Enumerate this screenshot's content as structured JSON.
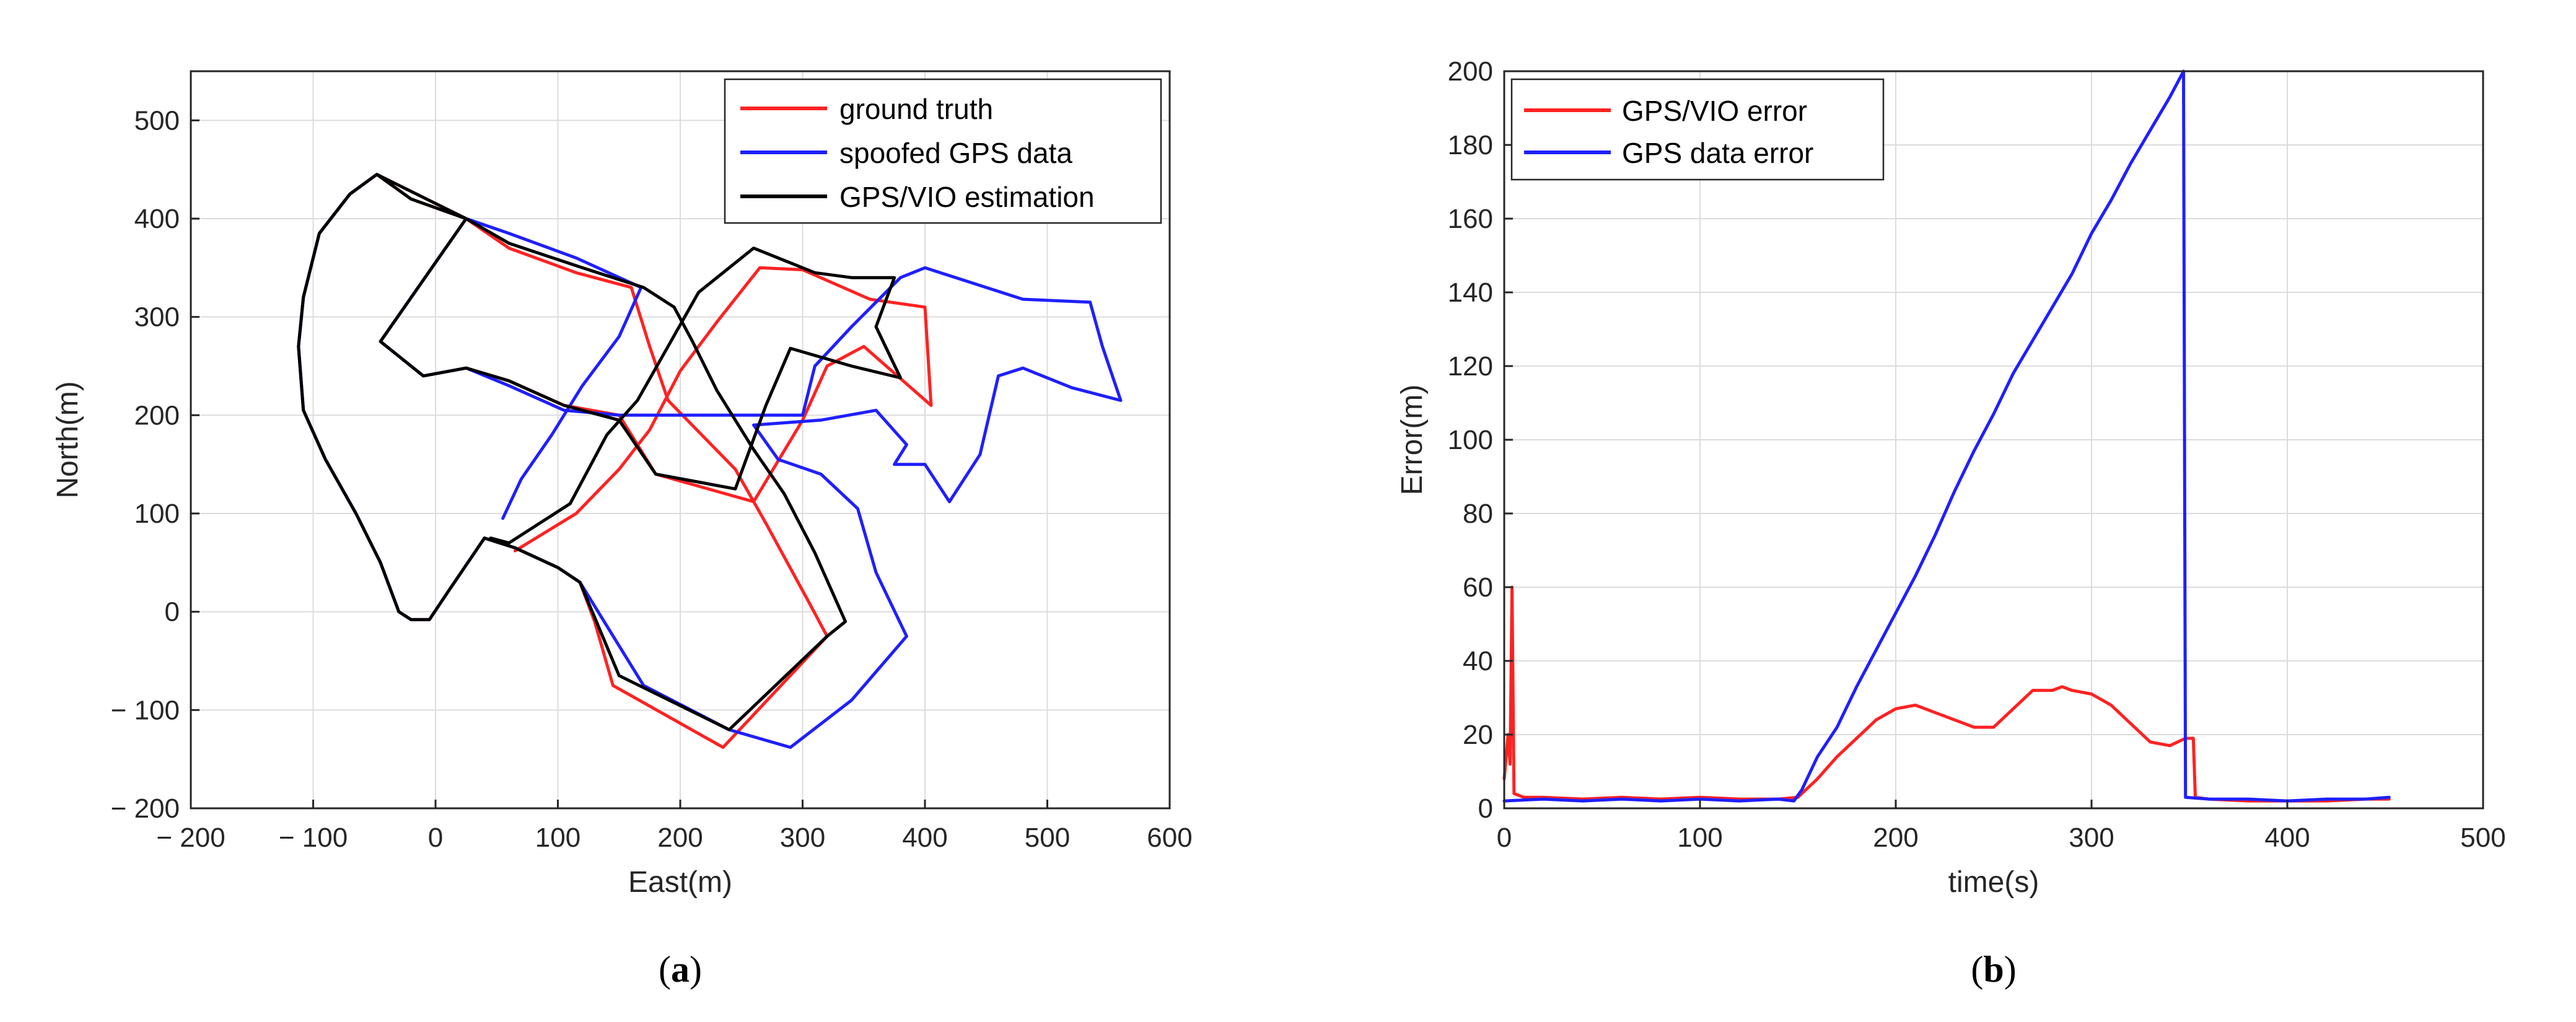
{
  "colors": {
    "red": "#ff2222",
    "blue": "#1f1fff",
    "black": "#000000",
    "grid": "#dcdcdc",
    "axis": "#262626"
  },
  "chart_data": [
    {
      "type": "line",
      "caption_open": "(",
      "caption_letter": "a",
      "caption_close": ")",
      "xlabel": "East(m)",
      "ylabel": "North(m)",
      "xlim": [
        -200,
        600
      ],
      "ylim": [
        -200,
        550
      ],
      "xticks": [
        -200,
        -100,
        0,
        100,
        200,
        300,
        400,
        500,
        600
      ],
      "yticks": [
        -200,
        -100,
        0,
        100,
        200,
        300,
        400,
        500
      ],
      "xtick_labels": [
        "− 200",
        "− 100",
        "0",
        "100",
        "200",
        "300",
        "400",
        "500",
        "600"
      ],
      "ytick_labels": [
        "− 200",
        "− 100",
        "0",
        "100",
        "200",
        "300",
        "400",
        "500"
      ],
      "grid": true,
      "legend_position": "top-right",
      "series": [
        {
          "name": "ground truth",
          "color": "#ff2222",
          "points": [
            [
              -48,
              445
            ],
            [
              -70,
              425
            ],
            [
              -95,
              385
            ],
            [
              -108,
              320
            ],
            [
              -112,
              270
            ],
            [
              -108,
              205
            ],
            [
              -90,
              155
            ],
            [
              -65,
              100
            ],
            [
              -45,
              50
            ],
            [
              -30,
              0
            ],
            [
              -20,
              -8
            ],
            [
              -5,
              -8
            ],
            [
              10,
              20
            ],
            [
              40,
              75
            ],
            [
              65,
              65
            ],
            [
              100,
              45
            ],
            [
              118,
              30
            ],
            [
              130,
              -10
            ],
            [
              145,
              -75
            ],
            [
              235,
              -138
            ],
            [
              320,
              -25
            ],
            [
              305,
              10
            ],
            [
              270,
              90
            ],
            [
              245,
              145
            ],
            [
              190,
              215
            ],
            [
              175,
              270
            ],
            [
              160,
              330
            ],
            [
              115,
              345
            ],
            [
              60,
              370
            ],
            [
              25,
              400
            ],
            [
              -20,
              420
            ],
            [
              -48,
              445
            ],
            [
              25,
              400
            ],
            [
              -45,
              275
            ],
            [
              -10,
              240
            ],
            [
              25,
              248
            ],
            [
              60,
              235
            ],
            [
              105,
              210
            ],
            [
              150,
              200
            ],
            [
              180,
              140
            ],
            [
              260,
              112
            ],
            [
              300,
              195
            ],
            [
              320,
              250
            ],
            [
              350,
              270
            ],
            [
              405,
              210
            ],
            [
              400,
              310
            ],
            [
              355,
              318
            ],
            [
              300,
              348
            ],
            [
              265,
              350
            ],
            [
              230,
              295
            ],
            [
              200,
              245
            ],
            [
              175,
              185
            ],
            [
              150,
              145
            ],
            [
              115,
              100
            ],
            [
              65,
              62
            ]
          ]
        },
        {
          "name": "spoofed GPS data",
          "color": "#1f1fff",
          "points": [
            [
              -48,
              445
            ],
            [
              -70,
              425
            ],
            [
              -95,
              385
            ],
            [
              -108,
              320
            ],
            [
              -112,
              270
            ],
            [
              -108,
              205
            ],
            [
              -90,
              155
            ],
            [
              -65,
              100
            ],
            [
              -45,
              50
            ],
            [
              -30,
              0
            ],
            [
              -20,
              -8
            ],
            [
              -5,
              -8
            ],
            [
              10,
              20
            ],
            [
              40,
              75
            ],
            [
              65,
              65
            ],
            [
              100,
              45
            ],
            [
              118,
              30
            ],
            [
              170,
              -75
            ],
            [
              240,
              -120
            ],
            [
              290,
              -138
            ],
            [
              340,
              -90
            ],
            [
              385,
              -25
            ],
            [
              360,
              40
            ],
            [
              345,
              105
            ],
            [
              315,
              140
            ],
            [
              280,
              155
            ],
            [
              260,
              190
            ],
            [
              315,
              195
            ],
            [
              360,
              205
            ],
            [
              385,
              170
            ],
            [
              375,
              150
            ],
            [
              400,
              150
            ],
            [
              420,
              112
            ],
            [
              445,
              160
            ],
            [
              460,
              240
            ],
            [
              480,
              248
            ],
            [
              520,
              228
            ],
            [
              560,
              215
            ],
            [
              545,
              270
            ],
            [
              535,
              315
            ],
            [
              480,
              318
            ],
            [
              400,
              350
            ],
            [
              380,
              340
            ],
            [
              340,
              290
            ],
            [
              310,
              250
            ],
            [
              300,
              200
            ],
            [
              260,
              200
            ],
            [
              200,
              200
            ],
            [
              150,
              200
            ],
            [
              105,
              205
            ],
            [
              60,
              230
            ],
            [
              25,
              248
            ],
            [
              -10,
              240
            ],
            [
              -45,
              275
            ],
            [
              25,
              400
            ],
            [
              60,
              385
            ],
            [
              115,
              360
            ],
            [
              168,
              330
            ],
            [
              150,
              280
            ],
            [
              120,
              230
            ],
            [
              95,
              180
            ],
            [
              70,
              135
            ],
            [
              55,
              95
            ]
          ]
        },
        {
          "name": "GPS/VIO estimation",
          "color": "#000000",
          "points": [
            [
              -48,
              445
            ],
            [
              -70,
              425
            ],
            [
              -95,
              385
            ],
            [
              -108,
              320
            ],
            [
              -112,
              270
            ],
            [
              -108,
              205
            ],
            [
              -90,
              155
            ],
            [
              -65,
              100
            ],
            [
              -45,
              50
            ],
            [
              -30,
              0
            ],
            [
              -20,
              -8
            ],
            [
              -5,
              -8
            ],
            [
              10,
              20
            ],
            [
              40,
              75
            ],
            [
              65,
              65
            ],
            [
              100,
              45
            ],
            [
              118,
              30
            ],
            [
              150,
              -65
            ],
            [
              240,
              -120
            ],
            [
              320,
              -25
            ],
            [
              335,
              -10
            ],
            [
              310,
              60
            ],
            [
              285,
              120
            ],
            [
              260,
              165
            ],
            [
              230,
              225
            ],
            [
              210,
              275
            ],
            [
              195,
              310
            ],
            [
              170,
              330
            ],
            [
              120,
              350
            ],
            [
              60,
              375
            ],
            [
              25,
              400
            ],
            [
              -20,
              420
            ],
            [
              -48,
              445
            ],
            [
              25,
              400
            ],
            [
              -45,
              275
            ],
            [
              -10,
              240
            ],
            [
              25,
              248
            ],
            [
              60,
              235
            ],
            [
              105,
              210
            ],
            [
              150,
              195
            ],
            [
              180,
              140
            ],
            [
              245,
              125
            ],
            [
              270,
              210
            ],
            [
              290,
              268
            ],
            [
              340,
              250
            ],
            [
              380,
              238
            ],
            [
              360,
              290
            ],
            [
              375,
              340
            ],
            [
              340,
              340
            ],
            [
              310,
              345
            ],
            [
              260,
              370
            ],
            [
              215,
              325
            ],
            [
              190,
              270
            ],
            [
              165,
              215
            ],
            [
              140,
              180
            ],
            [
              110,
              110
            ],
            [
              60,
              70
            ],
            [
              45,
              75
            ]
          ]
        }
      ]
    },
    {
      "type": "line",
      "caption_open": "(",
      "caption_letter": "b",
      "caption_close": ")",
      "xlabel": "time(s)",
      "ylabel": "Error(m)",
      "xlim": [
        0,
        500
      ],
      "ylim": [
        0,
        200
      ],
      "xticks": [
        0,
        100,
        200,
        300,
        400,
        500
      ],
      "yticks": [
        0,
        20,
        40,
        60,
        80,
        100,
        120,
        140,
        160,
        180,
        200
      ],
      "xtick_labels": [
        "0",
        "100",
        "200",
        "300",
        "400",
        "500"
      ],
      "ytick_labels": [
        "0",
        "20",
        "40",
        "60",
        "80",
        "100",
        "120",
        "140",
        "160",
        "180",
        "200"
      ],
      "grid": true,
      "legend_position": "top-left",
      "series": [
        {
          "name": "GPS/VIO error",
          "color": "#ff2222",
          "points": [
            [
              0,
              8
            ],
            [
              2,
              20
            ],
            [
              3,
              12
            ],
            [
              4,
              60
            ],
            [
              5,
              4
            ],
            [
              10,
              3
            ],
            [
              20,
              3
            ],
            [
              40,
              2.5
            ],
            [
              60,
              3
            ],
            [
              80,
              2.5
            ],
            [
              100,
              3
            ],
            [
              120,
              2.5
            ],
            [
              140,
              2.5
            ],
            [
              150,
              3
            ],
            [
              160,
              8
            ],
            [
              170,
              14
            ],
            [
              180,
              19
            ],
            [
              190,
              24
            ],
            [
              200,
              27
            ],
            [
              210,
              28
            ],
            [
              220,
              26
            ],
            [
              230,
              24
            ],
            [
              240,
              22
            ],
            [
              250,
              22
            ],
            [
              260,
              27
            ],
            [
              270,
              32
            ],
            [
              280,
              32
            ],
            [
              285,
              33
            ],
            [
              290,
              32
            ],
            [
              300,
              31
            ],
            [
              310,
              28
            ],
            [
              320,
              23
            ],
            [
              330,
              18
            ],
            [
              340,
              17
            ],
            [
              348,
              19
            ],
            [
              352,
              19
            ],
            [
              353,
              3
            ],
            [
              360,
              2.5
            ],
            [
              380,
              2
            ],
            [
              400,
              2
            ],
            [
              420,
              2
            ],
            [
              440,
              2.5
            ],
            [
              452,
              2.5
            ]
          ]
        },
        {
          "name": "GPS data error",
          "color": "#1f1fff",
          "points": [
            [
              0,
              2
            ],
            [
              20,
              2.5
            ],
            [
              40,
              2
            ],
            [
              60,
              2.5
            ],
            [
              80,
              2
            ],
            [
              100,
              2.5
            ],
            [
              120,
              2
            ],
            [
              140,
              2.5
            ],
            [
              148,
              2
            ],
            [
              152,
              5
            ],
            [
              160,
              14
            ],
            [
              170,
              22
            ],
            [
              180,
              33
            ],
            [
              190,
              43
            ],
            [
              200,
              53
            ],
            [
              210,
              63
            ],
            [
              220,
              74
            ],
            [
              230,
              86
            ],
            [
              240,
              97
            ],
            [
              250,
              107
            ],
            [
              260,
              118
            ],
            [
              270,
              127
            ],
            [
              280,
              136
            ],
            [
              290,
              145
            ],
            [
              300,
              156
            ],
            [
              310,
              165
            ],
            [
              320,
              175
            ],
            [
              330,
              184
            ],
            [
              340,
              193
            ],
            [
              347,
              200
            ],
            [
              348,
              3
            ],
            [
              360,
              2.5
            ],
            [
              380,
              2.5
            ],
            [
              400,
              2
            ],
            [
              420,
              2.5
            ],
            [
              440,
              2.5
            ],
            [
              452,
              3
            ]
          ]
        }
      ]
    }
  ]
}
